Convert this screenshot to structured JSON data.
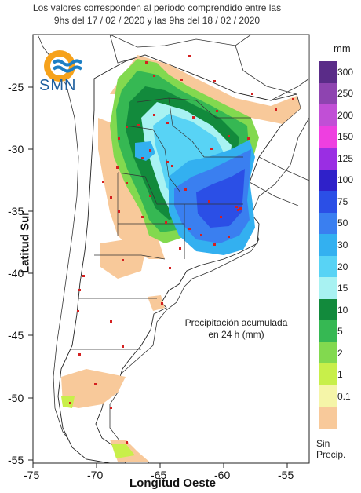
{
  "title": {
    "line1": "Los valores corresponden al periodo comprendido entre las",
    "line2": "9hs del 17 / 02 / 2020  y las 9hs del 18 / 02 / 2020"
  },
  "logo": {
    "text": "SMN",
    "icon": "smn-logo-icon"
  },
  "axes": {
    "ylabel": "Latitud Sur",
    "xlabel": "Longitud Oeste",
    "xticks": [
      "-75",
      "-70",
      "-65",
      "-60",
      "-55"
    ],
    "yticks": [
      "-25",
      "-30",
      "-35",
      "-40",
      "-45",
      "-50",
      "-55"
    ]
  },
  "annotation": {
    "line1": "Precipitación acumulada",
    "line2": "en 24 h (mm)"
  },
  "legend": {
    "unit": "mm",
    "items": [
      {
        "label": "300",
        "color": "#5a2c88"
      },
      {
        "label": "250",
        "color": "#8e44b0"
      },
      {
        "label": "200",
        "color": "#c14fd6"
      },
      {
        "label": "150",
        "color": "#ee3fe0"
      },
      {
        "label": "125",
        "color": "#9a2ee3"
      },
      {
        "label": "100",
        "color": "#2f21c9"
      },
      {
        "label": "75",
        "color": "#2b4fe6"
      },
      {
        "label": "50",
        "color": "#3a7ff0"
      },
      {
        "label": "30",
        "color": "#33b0f0"
      },
      {
        "label": "20",
        "color": "#58d3f5"
      },
      {
        "label": "15",
        "color": "#a8f2f2"
      },
      {
        "label": "10",
        "color": "#128a3c"
      },
      {
        "label": "5",
        "color": "#36b853"
      },
      {
        "label": "2",
        "color": "#82d94f"
      },
      {
        "label": "1",
        "color": "#c8ef4a"
      },
      {
        "label": "0.1",
        "color": "#f5f5a8"
      },
      {
        "label": "",
        "color": "#f8c99a"
      }
    ],
    "nodata_line1": "Sin",
    "nodata_line2": "Precip."
  }
}
